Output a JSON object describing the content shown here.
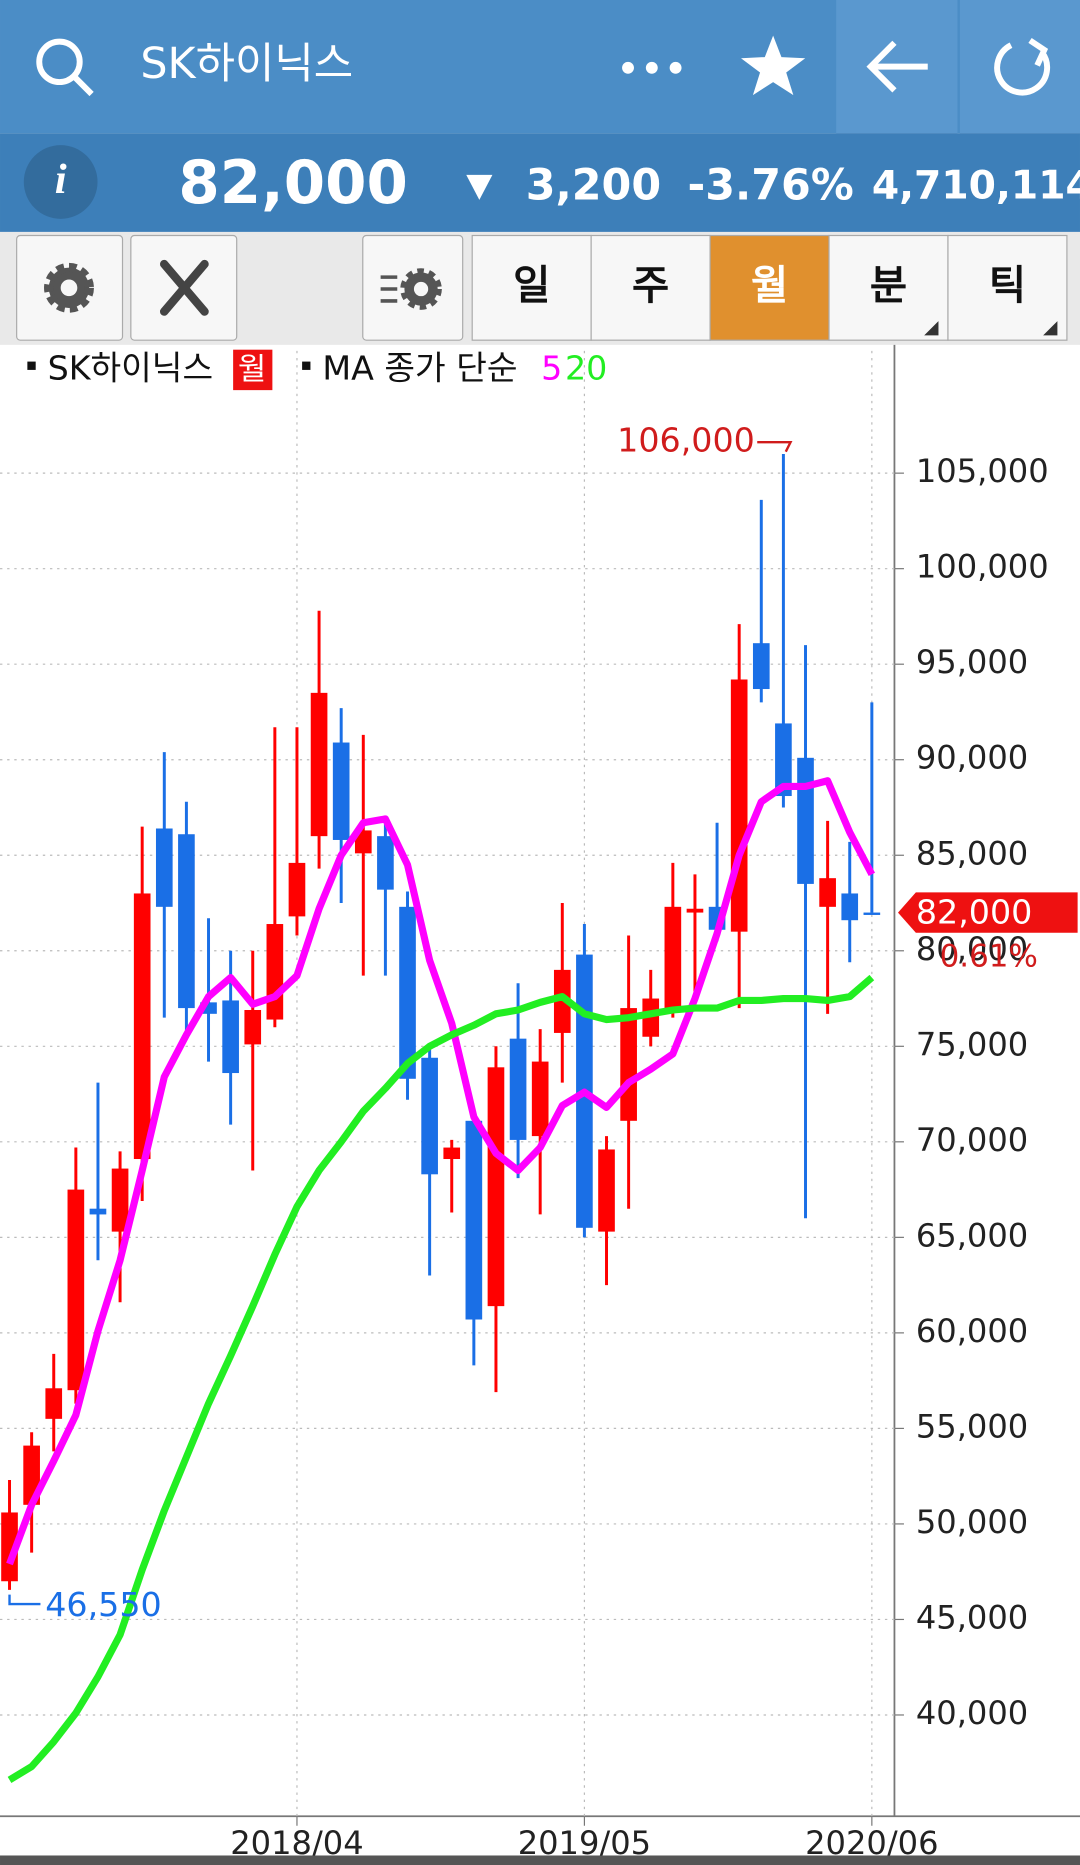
{
  "header": {
    "title": "SK하이닉스",
    "price": "82,000",
    "change": "3,200",
    "change_pct": "-3.76%",
    "volume": "4,710,114"
  },
  "toolbar": {
    "tabs": [
      "일",
      "주",
      "월",
      "분",
      "틱"
    ],
    "active_tab": 2
  },
  "chart_data": {
    "type": "candlestick",
    "legend": {
      "name": "SK하이닉스",
      "period": "월",
      "ma_label": "MA 종가 단순"
    },
    "categories": [
      null,
      null,
      null,
      null,
      null,
      null,
      null,
      null,
      null,
      null,
      null,
      null,
      null,
      "2018/04",
      null,
      null,
      null,
      null,
      null,
      null,
      null,
      null,
      null,
      null,
      null,
      null,
      "2019/05",
      null,
      null,
      null,
      null,
      null,
      null,
      null,
      null,
      null,
      null,
      null,
      null,
      "2020/06"
    ],
    "up_color": "#ff0000",
    "down_color": "#1a6fe6",
    "open": [
      47000,
      51000,
      55500,
      57000,
      66500,
      65300,
      69100,
      86400,
      86100,
      77300,
      77400,
      75100,
      76400,
      81800,
      86000,
      90900,
      85100,
      86000,
      82300,
      74400,
      69100,
      71100,
      61400,
      75400,
      70300,
      75700,
      79800,
      65300,
      71100,
      75500,
      77000,
      82000,
      82300,
      81000,
      96100,
      91900,
      90100,
      82300,
      83000,
      82000
    ],
    "high": [
      52300,
      54800,
      58900,
      69700,
      73100,
      69500,
      86500,
      90400,
      87800,
      81700,
      80000,
      80000,
      91700,
      91700,
      97800,
      92700,
      91300,
      86800,
      83100,
      75000,
      70100,
      71300,
      75000,
      78300,
      75900,
      82500,
      81400,
      70300,
      80800,
      79000,
      84600,
      84000,
      86700,
      97100,
      103600,
      106000,
      96000,
      86800,
      85700,
      93000
    ],
    "low": [
      46550,
      48500,
      53800,
      56300,
      63800,
      61600,
      66900,
      76500,
      75600,
      74200,
      70900,
      68500,
      76000,
      80800,
      84300,
      82500,
      78700,
      78700,
      72200,
      63000,
      66300,
      58300,
      56900,
      68100,
      66200,
      73100,
      65000,
      62500,
      66500,
      75000,
      76500,
      77500,
      80500,
      77000,
      93000,
      87500,
      66000,
      76700,
      79400,
      82000
    ],
    "close": [
      50600,
      54100,
      57100,
      67500,
      66200,
      68600,
      83000,
      82300,
      77000,
      76700,
      73600,
      76900,
      81400,
      84600,
      93500,
      85800,
      86300,
      83200,
      73300,
      68300,
      69700,
      60700,
      73900,
      70100,
      74200,
      79000,
      65500,
      69600,
      77000,
      77500,
      82300,
      82200,
      81100,
      94200,
      93700,
      88100,
      83500,
      83800,
      81600,
      82000
    ],
    "series": [
      {
        "name": "5",
        "color": "#ff00ff",
        "values": [
          47900,
          51000,
          53300,
          55700,
          60100,
          63800,
          68500,
          73400,
          75600,
          77600,
          78600,
          77200,
          77600,
          78700,
          82200,
          85000,
          86700,
          86900,
          84500,
          79500,
          76200,
          71300,
          69400,
          68500,
          69700,
          71900,
          72600,
          71800,
          73100,
          73800,
          74600,
          77500,
          80900,
          85000,
          87800,
          88600,
          88600,
          88900,
          86200,
          84000
        ]
      },
      {
        "name": "20",
        "color": "#22ee22",
        "values": [
          36600,
          37300,
          38600,
          40100,
          42000,
          44200,
          47600,
          50700,
          53500,
          56300,
          58800,
          61400,
          64100,
          66600,
          68500,
          70000,
          71600,
          72800,
          74100,
          75000,
          75600,
          76100,
          76700,
          76900,
          77300,
          77600,
          76700,
          76400,
          76500,
          76700,
          76900,
          77000,
          77000,
          77400,
          77400,
          77500,
          77500,
          77400,
          77600,
          78600
        ]
      }
    ],
    "ylim": [
      34700,
      111400
    ],
    "yticks": [
      {
        "value": 40000,
        "label": "40,000"
      },
      {
        "value": 45000,
        "label": "45,000"
      },
      {
        "value": 50000,
        "label": "50,000"
      },
      {
        "value": 55000,
        "label": "55,000"
      },
      {
        "value": 60000,
        "label": "60,000"
      },
      {
        "value": 65000,
        "label": "65,000"
      },
      {
        "value": 70000,
        "label": "70,000"
      },
      {
        "value": 75000,
        "label": "75,000"
      },
      {
        "value": 80000,
        "label": "80,000"
      },
      {
        "value": 85000,
        "label": "85,000"
      },
      {
        "value": 90000,
        "label": "90,000"
      },
      {
        "value": 95000,
        "label": "95,000"
      },
      {
        "value": 100000,
        "label": "100,000"
      },
      {
        "value": 105000,
        "label": "105,000"
      }
    ],
    "grid": true,
    "max_label": "106,000",
    "min_label": "46,550",
    "last_label": "82,000",
    "last_note": "0.61%"
  }
}
